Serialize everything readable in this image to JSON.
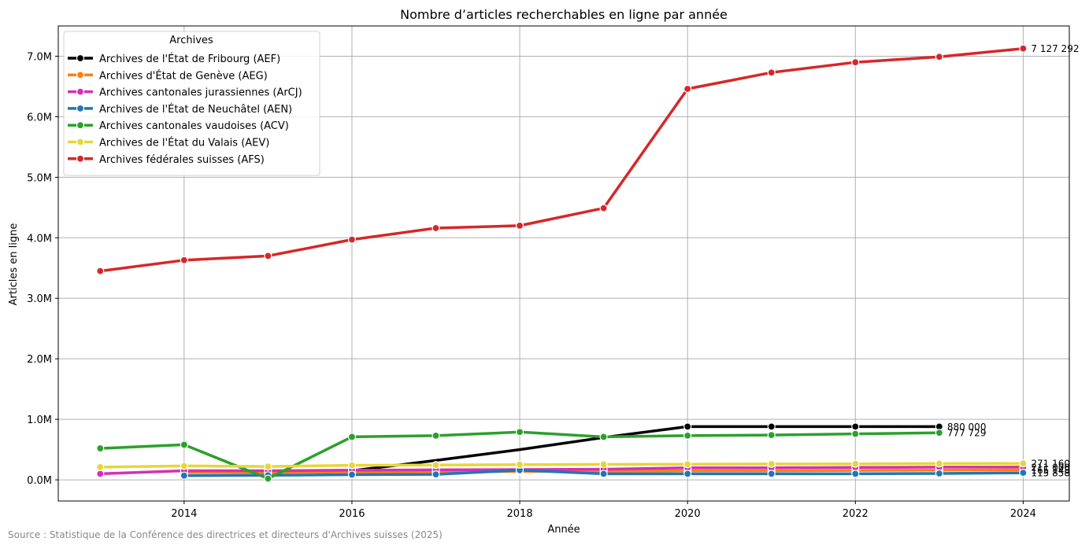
{
  "chart_data": {
    "type": "line",
    "title": "Nombre d’articles recherchables en ligne par année",
    "xlabel": "Année",
    "ylabel": "Articles en ligne",
    "xlim": [
      2012.5,
      2024.55
    ],
    "ylim": [
      -350000,
      7500000
    ],
    "xticks": [
      2014,
      2016,
      2018,
      2020,
      2022,
      2024
    ],
    "yticks": [
      {
        "value": 0,
        "label": "0.0M"
      },
      {
        "value": 1000000,
        "label": "1.0M"
      },
      {
        "value": 2000000,
        "label": "2.0M"
      },
      {
        "value": 3000000,
        "label": "3.0M"
      },
      {
        "value": 4000000,
        "label": "4.0M"
      },
      {
        "value": 5000000,
        "label": "5.0M"
      },
      {
        "value": 6000000,
        "label": "6.0M"
      },
      {
        "value": 7000000,
        "label": "7.0M"
      }
    ],
    "grid": true,
    "legend": {
      "title": "Archives",
      "position": "top-left"
    },
    "series": [
      {
        "name": "Archives de l'État de Fribourg (AEF)",
        "color": "#000000",
        "x": [
          2013,
          2014,
          2015,
          2016,
          2017,
          2018,
          2019,
          2020,
          2021,
          2022,
          2023
        ],
        "y": [
          null,
          null,
          null,
          150000,
          320000,
          500000,
          700000,
          880000,
          880000,
          880000,
          880000
        ],
        "markers": [
          2020,
          2021,
          2022,
          2023
        ],
        "end_label": "880 000"
      },
      {
        "name": "Archives d'État de Genève (AEG)",
        "color": "#ff7f0e",
        "x": [
          2014,
          2015,
          2016,
          2017,
          2018,
          2019,
          2020,
          2021,
          2022,
          2023,
          2024
        ],
        "y": [
          120000,
          120000,
          130000,
          130000,
          140000,
          140000,
          150000,
          150000,
          155000,
          160000,
          165148
        ],
        "markers": [
          2014,
          2015,
          2016,
          2017,
          2018,
          2019,
          2020,
          2021,
          2022,
          2023,
          2024
        ],
        "end_label": "165 148"
      },
      {
        "name": "Archives cantonales jurassiennes (ArCJ)",
        "color": "#d62fb4",
        "x": [
          2013,
          2014,
          2015,
          2016,
          2017,
          2018,
          2019,
          2020,
          2021,
          2022,
          2023,
          2024
        ],
        "y": [
          100000,
          150000,
          150000,
          160000,
          165000,
          170000,
          175000,
          200000,
          200000,
          205000,
          210000,
          211000
        ],
        "markers": [
          2013,
          2014,
          2015,
          2016,
          2017,
          2018,
          2019,
          2020,
          2021,
          2022,
          2023,
          2024
        ],
        "end_label": "211 000"
      },
      {
        "name": "Archives de l'État de Neuchâtel (AEN)",
        "color": "#1f77b4",
        "x": [
          2014,
          2015,
          2016,
          2017,
          2018,
          2019,
          2020,
          2021,
          2022,
          2023,
          2024
        ],
        "y": [
          70000,
          75000,
          85000,
          90000,
          160000,
          100000,
          100000,
          100000,
          100000,
          105000,
          115858
        ],
        "markers": [
          2014,
          2015,
          2016,
          2017,
          2018,
          2019,
          2020,
          2021,
          2022,
          2023,
          2024
        ],
        "end_label": "115 858"
      },
      {
        "name": "Archives cantonales vaudoises (ACV)",
        "color": "#2ca02c",
        "x": [
          2013,
          2014,
          2015,
          2016,
          2017,
          2018,
          2019,
          2020,
          2021,
          2022,
          2023
        ],
        "y": [
          520000,
          580000,
          20000,
          710000,
          730000,
          790000,
          710000,
          730000,
          740000,
          760000,
          777729
        ],
        "markers": [
          2013,
          2014,
          2015,
          2016,
          2017,
          2018,
          2019,
          2020,
          2021,
          2022,
          2023
        ],
        "end_label": "777 729"
      },
      {
        "name": "Archives de l'État du Valais (AEV)",
        "color": "#e6d63a",
        "x": [
          2013,
          2014,
          2015,
          2016,
          2017,
          2018,
          2019,
          2020,
          2021,
          2022,
          2023,
          2024
        ],
        "y": [
          210000,
          230000,
          220000,
          240000,
          245000,
          250000,
          255000,
          258000,
          262000,
          265000,
          268000,
          271160
        ],
        "markers": [
          2013,
          2014,
          2015,
          2016,
          2017,
          2018,
          2019,
          2020,
          2021,
          2022,
          2023,
          2024
        ],
        "end_label": "271 160"
      },
      {
        "name": "Archives fédérales suisses (AFS)",
        "color": "#d62728",
        "x": [
          2013,
          2014,
          2015,
          2016,
          2017,
          2018,
          2019,
          2020,
          2021,
          2022,
          2023,
          2024
        ],
        "y": [
          3450000,
          3630000,
          3700000,
          3970000,
          4160000,
          4200000,
          4490000,
          6460000,
          6730000,
          6900000,
          6990000,
          7127292
        ],
        "markers": [
          2013,
          2014,
          2015,
          2016,
          2017,
          2018,
          2019,
          2020,
          2021,
          2022,
          2023,
          2024
        ],
        "end_label": "7 127 292"
      }
    ]
  },
  "source": "Source : Statistique de la Conférence des directrices et directeurs d'Archives suisses (2025)"
}
